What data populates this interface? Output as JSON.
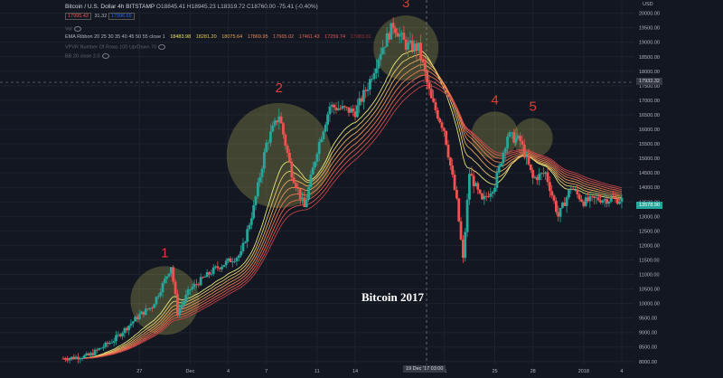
{
  "header": {
    "title": "Bitcoin / U.S. Dollar  4h  BITSTAMP",
    "ohlc": "O18845.41  H18945.23  L18319.72  C18760.00  -75.41 (-0.40%)",
    "sell_price": "17995.43",
    "spread": "31.32",
    "buy_price": "17996.65",
    "vol_label": "Vol",
    "ema_ribbon_label": "EMA Ribbon  20 25 30 35 40 45 50 55 close 1",
    "ema_values": [
      "18483.98",
      "18281.20",
      "18075.64",
      "17869.95",
      "17665.02",
      "17461.43",
      "17259.74",
      "17083.01"
    ],
    "vpvr_label": "VPVR Number Of Rows 100 Up/Down 70",
    "bb_label": "BB 20 close 2 0"
  },
  "axis": {
    "currency": "USD",
    "y_ticks": [
      "20000.00",
      "19500.00",
      "19000.00",
      "18500.00",
      "18000.00",
      "17500.00",
      "17000.00",
      "16500.00",
      "16000.00",
      "15500.00",
      "15000.00",
      "14500.00",
      "14000.00",
      "13500.00",
      "13000.00",
      "12500.00",
      "12000.00",
      "11500.00",
      "11000.00",
      "10500.00",
      "10000.00",
      "9500.00",
      "9000.00",
      "8500.00",
      "8000.00"
    ],
    "x_ticks": [
      "27",
      "Dec",
      "4",
      "7",
      "11",
      "14",
      "21",
      "25",
      "28",
      "2018",
      "4"
    ],
    "crosshair_price": "17932.32",
    "last_price": "13578.90",
    "crosshair_date": "19 Dec '17  03:00"
  },
  "caption": "Bitcoin 2017",
  "colors": {
    "background": "#131722",
    "up": "#26a69a",
    "down": "#ef5350",
    "highlight": "#e6e664",
    "annotation": "#e53935"
  },
  "chart_data": {
    "type": "candlestick",
    "title": "Bitcoin / U.S. Dollar 4h BITSTAMP",
    "xlabel": "",
    "ylabel": "USD",
    "ylim": [
      7900,
      20300
    ],
    "x_domain": [
      "2017-11-21",
      "2018-01-05"
    ],
    "price_path": [
      {
        "date": "2017-11-21",
        "close": 8100
      },
      {
        "date": "2017-11-23",
        "close": 8200
      },
      {
        "date": "2017-11-25",
        "close": 8750
      },
      {
        "date": "2017-11-27",
        "close": 9600
      },
      {
        "date": "2017-11-28",
        "close": 9900
      },
      {
        "date": "2017-11-29",
        "close": 10800
      },
      {
        "date": "2017-11-29",
        "close": 11300
      },
      {
        "date": "2017-11-30",
        "close": 9700
      },
      {
        "date": "2017-12-01",
        "close": 10500
      },
      {
        "date": "2017-12-03",
        "close": 11200
      },
      {
        "date": "2017-12-05",
        "close": 11700
      },
      {
        "date": "2017-12-06",
        "close": 13300
      },
      {
        "date": "2017-12-07",
        "close": 15500
      },
      {
        "date": "2017-12-08",
        "close": 16500
      },
      {
        "date": "2017-12-09",
        "close": 14500
      },
      {
        "date": "2017-12-10",
        "close": 13300
      },
      {
        "date": "2017-12-11",
        "close": 15300
      },
      {
        "date": "2017-12-12",
        "close": 16800
      },
      {
        "date": "2017-12-14",
        "close": 16600
      },
      {
        "date": "2017-12-15",
        "close": 17500
      },
      {
        "date": "2017-12-16",
        "close": 18700
      },
      {
        "date": "2017-12-17",
        "close": 19600
      },
      {
        "date": "2017-12-18",
        "close": 18900
      },
      {
        "date": "2017-12-19",
        "close": 18800
      },
      {
        "date": "2017-12-20",
        "close": 17000
      },
      {
        "date": "2017-12-21",
        "close": 16000
      },
      {
        "date": "2017-12-22",
        "close": 13500
      },
      {
        "date": "2017-12-22",
        "close": 11500
      },
      {
        "date": "2017-12-23",
        "close": 14500
      },
      {
        "date": "2017-12-24",
        "close": 13500
      },
      {
        "date": "2017-12-25",
        "close": 14100
      },
      {
        "date": "2017-12-26",
        "close": 15800
      },
      {
        "date": "2017-12-27",
        "close": 15600
      },
      {
        "date": "2017-12-28",
        "close": 14300
      },
      {
        "date": "2017-12-29",
        "close": 14500
      },
      {
        "date": "2017-12-30",
        "close": 13000
      },
      {
        "date": "2017-12-31",
        "close": 14000
      },
      {
        "date": "2018-01-01",
        "close": 13500
      },
      {
        "date": "2018-01-02",
        "close": 13600
      },
      {
        "date": "2018-01-04",
        "close": 13570
      }
    ],
    "annotations": [
      {
        "label": "1",
        "date": "2017-11-29",
        "price": 10100
      },
      {
        "label": "2",
        "date": "2017-12-08",
        "price": 15100
      },
      {
        "label": "3",
        "date": "2017-12-18",
        "price": 18800
      },
      {
        "label": "4",
        "date": "2017-12-25",
        "price": 15800
      },
      {
        "label": "5",
        "date": "2017-12-28",
        "price": 15700
      }
    ],
    "grid": true
  }
}
